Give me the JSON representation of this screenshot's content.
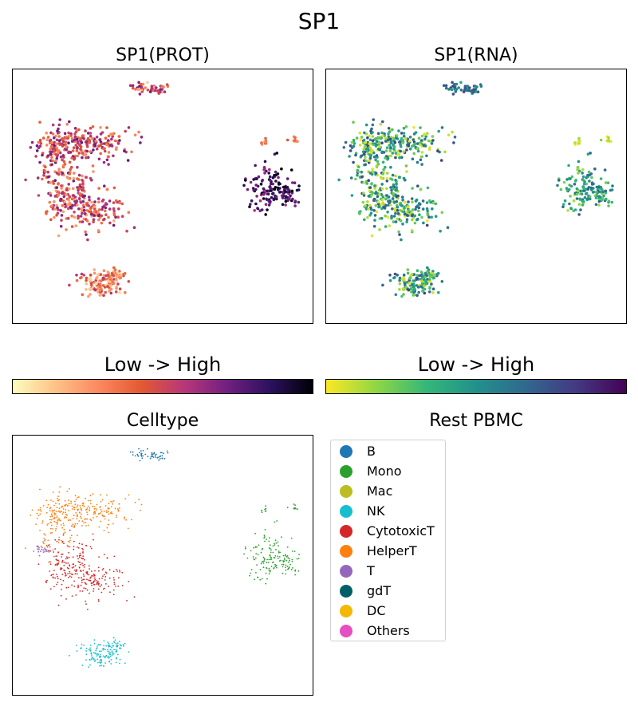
{
  "title": "SP1",
  "panels": {
    "prot": {
      "title": "SP1(PROT)",
      "colorbar_label": "Low  ->  High"
    },
    "rna": {
      "title": "SP1(RNA)",
      "colorbar_label": "Low  ->  High"
    },
    "celltype": {
      "title": "Celltype"
    },
    "legend_title": "Rest PBMC"
  },
  "colormaps": {
    "prot_magma_reversed": [
      "#fcfdbf",
      "#fec287",
      "#fc8961",
      "#e35932",
      "#b73779",
      "#721f81",
      "#2c115f",
      "#000004"
    ],
    "rna_viridis_reversed": [
      "#fde725",
      "#90d743",
      "#35b779",
      "#21918c",
      "#31688e",
      "#443983",
      "#440154"
    ]
  },
  "chart_data": [
    {
      "type": "scatter",
      "title": "SP1(PROT)",
      "xlabel": "",
      "ylabel": "",
      "encoding": "color = SP1 protein expression (Low -> High)",
      "clusters": [
        {
          "name": "B",
          "level_range": [
            0.1,
            0.75
          ]
        },
        {
          "name": "HelperT/T",
          "level_range": [
            0.25,
            0.75
          ]
        },
        {
          "name": "CytotoxicT",
          "level_range": [
            0.2,
            0.75
          ]
        },
        {
          "name": "Mono",
          "level_range": [
            0.6,
            1.0
          ]
        },
        {
          "name": "Mono-small",
          "level_range": [
            0.25,
            0.45
          ]
        },
        {
          "name": "NK",
          "level_range": [
            0.05,
            0.6
          ]
        }
      ]
    },
    {
      "type": "scatter",
      "title": "SP1(RNA)",
      "xlabel": "",
      "ylabel": "",
      "encoding": "color = SP1 RNA expression (Low -> High)",
      "clusters": [
        {
          "name": "B",
          "level_range": [
            0.4,
            0.8
          ]
        },
        {
          "name": "HelperT/T",
          "level_range": [
            0.0,
            0.8
          ]
        },
        {
          "name": "CytotoxicT",
          "level_range": [
            0.0,
            0.8
          ]
        },
        {
          "name": "Mono",
          "level_range": [
            0.1,
            0.7
          ]
        },
        {
          "name": "Mono-small",
          "level_range": [
            0.0,
            0.2
          ]
        },
        {
          "name": "NK",
          "level_range": [
            0.0,
            0.8
          ]
        }
      ]
    },
    {
      "type": "scatter",
      "title": "Celltype",
      "xlabel": "",
      "ylabel": "",
      "legend_title": "Rest PBMC",
      "legend_position": "right",
      "legend": [
        {
          "label": "B",
          "color": "#1f77b4"
        },
        {
          "label": "Mono",
          "color": "#2ca02c"
        },
        {
          "label": "Mac",
          "color": "#bcbd22"
        },
        {
          "label": "NK",
          "color": "#17becf"
        },
        {
          "label": "CytotoxicT",
          "color": "#d62728"
        },
        {
          "label": "HelperT",
          "color": "#ff7f0e"
        },
        {
          "label": "T",
          "color": "#9467bd"
        },
        {
          "label": "gdT",
          "color": "#005f66"
        },
        {
          "label": "DC",
          "color": "#f5b800"
        },
        {
          "label": "Others",
          "color": "#e64fbf"
        }
      ]
    }
  ]
}
